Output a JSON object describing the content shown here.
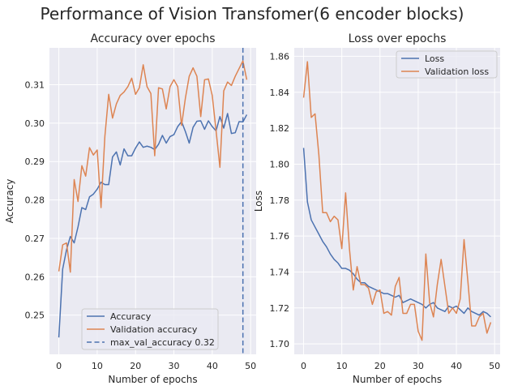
{
  "figure_title": "Performance of Vision Transfomer(6 encoder blocks)",
  "colors": {
    "blue": "#4c72b0",
    "orange": "#dd8452",
    "panel_bg": "#eaeaf2",
    "grid": "#ffffff"
  },
  "chart_data": [
    {
      "type": "line",
      "title": "Accuracy over epochs",
      "xlabel": "Number of epochs",
      "ylabel": "Accuracy",
      "xlim": [
        -2.45,
        51.45
      ],
      "ylim": [
        0.2398,
        0.3196
      ],
      "xticks": [
        "0",
        "10",
        "20",
        "30",
        "40",
        "50"
      ],
      "yticks": [
        "0.25",
        "0.26",
        "0.27",
        "0.28",
        "0.29",
        "0.30",
        "0.31"
      ],
      "grid": true,
      "legend_position": "lower center",
      "x": [
        0,
        1,
        2,
        3,
        4,
        5,
        6,
        7,
        8,
        9,
        10,
        11,
        12,
        13,
        14,
        15,
        16,
        17,
        18,
        19,
        20,
        21,
        22,
        23,
        24,
        25,
        26,
        27,
        28,
        29,
        30,
        31,
        32,
        33,
        34,
        35,
        36,
        37,
        38,
        39,
        40,
        41,
        42,
        43,
        44,
        45,
        46,
        47,
        48,
        49
      ],
      "series": [
        {
          "name": "Accuracy",
          "color": "#4c72b0",
          "values": [
            0.2442,
            0.262,
            0.267,
            0.2705,
            0.2688,
            0.273,
            0.278,
            0.2775,
            0.2808,
            0.2815,
            0.2828,
            0.2846,
            0.284,
            0.284,
            0.2912,
            0.2925,
            0.2891,
            0.2933,
            0.2915,
            0.2915,
            0.2935,
            0.2951,
            0.2937,
            0.294,
            0.2937,
            0.2931,
            0.2945,
            0.2968,
            0.2948,
            0.2965,
            0.297,
            0.2991,
            0.3004,
            0.2978,
            0.2948,
            0.2989,
            0.3005,
            0.3006,
            0.2984,
            0.3006,
            0.2991,
            0.298,
            0.3017,
            0.2987,
            0.3025,
            0.2973,
            0.2975,
            0.3004,
            0.3003,
            0.3022
          ]
        },
        {
          "name": "Validation accuracy",
          "color": "#dd8452",
          "values": [
            0.2614,
            0.2683,
            0.2688,
            0.2612,
            0.2853,
            0.2796,
            0.2889,
            0.2862,
            0.2936,
            0.2917,
            0.293,
            0.278,
            0.2965,
            0.3075,
            0.3013,
            0.305,
            0.3072,
            0.3081,
            0.3095,
            0.3117,
            0.3075,
            0.3092,
            0.3152,
            0.3095,
            0.3077,
            0.2915,
            0.3092,
            0.3089,
            0.3037,
            0.3095,
            0.3113,
            0.3095,
            0.2994,
            0.3065,
            0.3122,
            0.3144,
            0.3122,
            0.3017,
            0.3113,
            0.3115,
            0.3072,
            0.298,
            0.2885,
            0.3084,
            0.3107,
            0.3098,
            0.3122,
            0.3142,
            0.3162,
            0.3113
          ]
        }
      ],
      "vline": {
        "name": "max_val_accuracy 0.32",
        "x": 48,
        "color": "#4c72b0"
      }
    },
    {
      "type": "line",
      "title": "Loss over epochs",
      "xlabel": "Number of epochs",
      "ylabel": "Loss",
      "xlim": [
        -2.45,
        51.45
      ],
      "ylim": [
        1.6942,
        1.8647
      ],
      "xticks": [
        "0",
        "10",
        "20",
        "30",
        "40",
        "50"
      ],
      "yticks": [
        "1.70",
        "1.72",
        "1.74",
        "1.76",
        "1.78",
        "1.80",
        "1.82",
        "1.84",
        "1.86"
      ],
      "grid": true,
      "legend_position": "upper right",
      "x": [
        0,
        1,
        2,
        3,
        4,
        5,
        6,
        7,
        8,
        9,
        10,
        11,
        12,
        13,
        14,
        15,
        16,
        17,
        18,
        19,
        20,
        21,
        22,
        23,
        24,
        25,
        26,
        27,
        28,
        29,
        30,
        31,
        32,
        33,
        34,
        35,
        36,
        37,
        38,
        39,
        40,
        41,
        42,
        43,
        44,
        45,
        46,
        47,
        48,
        49
      ],
      "series": [
        {
          "name": "Loss",
          "color": "#4c72b0",
          "values": [
            1.809,
            1.779,
            1.769,
            1.765,
            1.761,
            1.757,
            1.754,
            1.75,
            1.747,
            1.745,
            1.742,
            1.742,
            1.741,
            1.739,
            1.736,
            1.734,
            1.734,
            1.732,
            1.731,
            1.73,
            1.729,
            1.728,
            1.728,
            1.727,
            1.726,
            1.727,
            1.723,
            1.724,
            1.725,
            1.724,
            1.723,
            1.722,
            1.72,
            1.722,
            1.723,
            1.72,
            1.719,
            1.718,
            1.721,
            1.72,
            1.721,
            1.719,
            1.717,
            1.72,
            1.718,
            1.717,
            1.716,
            1.718,
            1.717,
            1.715
          ]
        },
        {
          "name": "Validation loss",
          "color": "#dd8452",
          "values": [
            1.837,
            1.857,
            1.826,
            1.828,
            1.805,
            1.773,
            1.773,
            1.768,
            1.771,
            1.769,
            1.753,
            1.784,
            1.753,
            1.73,
            1.743,
            1.733,
            1.733,
            1.731,
            1.722,
            1.729,
            1.73,
            1.717,
            1.718,
            1.716,
            1.732,
            1.737,
            1.717,
            1.717,
            1.722,
            1.722,
            1.707,
            1.702,
            1.75,
            1.723,
            1.715,
            1.733,
            1.747,
            1.732,
            1.717,
            1.72,
            1.717,
            1.725,
            1.758,
            1.735,
            1.71,
            1.71,
            1.715,
            1.717,
            1.706,
            1.712
          ]
        }
      ]
    }
  ]
}
